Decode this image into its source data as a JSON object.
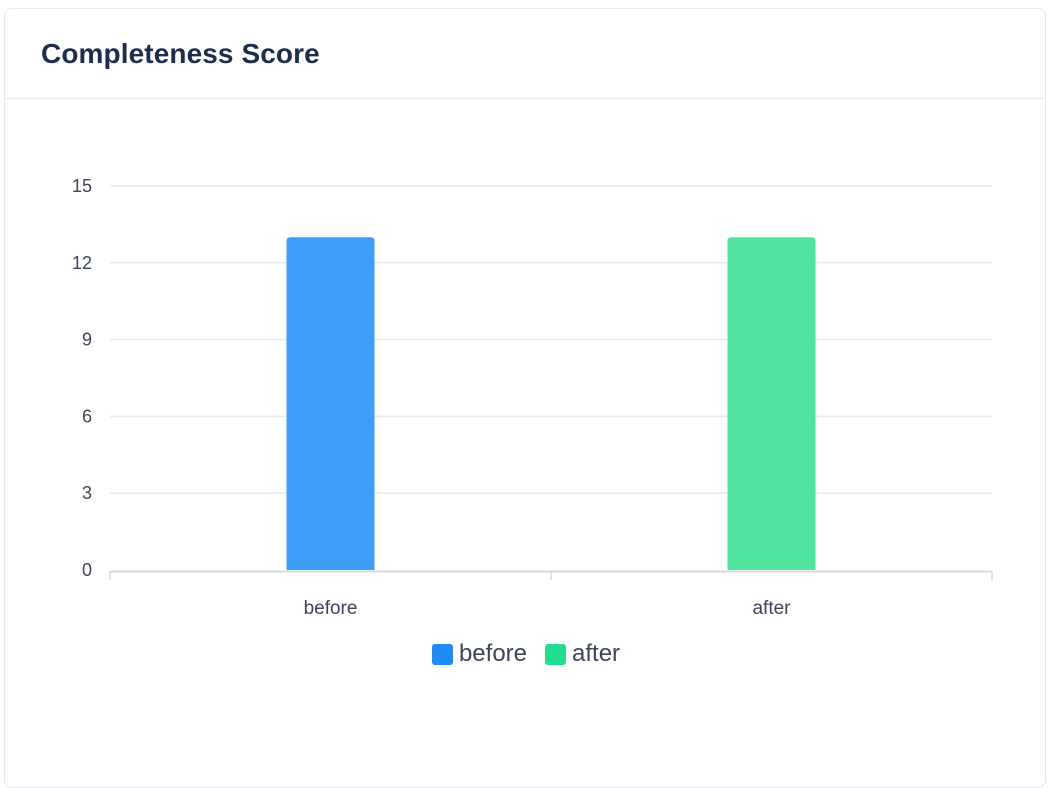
{
  "card": {
    "title": "Completeness Score"
  },
  "colors": {
    "before": "#3d9df9",
    "after": "#4fe39e",
    "before_legend": "#1f8bf3",
    "after_legend": "#21dd8f",
    "grid": "#e7eaee",
    "axis": "#d5d9de"
  },
  "chart_data": {
    "type": "bar",
    "categories": [
      "before",
      "after"
    ],
    "values": [
      13,
      13
    ],
    "ylim": [
      0,
      15
    ],
    "yticks": [
      0,
      3,
      6,
      9,
      12,
      15
    ],
    "grid": true,
    "legend_position": "bottom",
    "legend": [
      {
        "name": "before",
        "color": "#1f8bf3"
      },
      {
        "name": "after",
        "color": "#21dd8f"
      }
    ]
  }
}
